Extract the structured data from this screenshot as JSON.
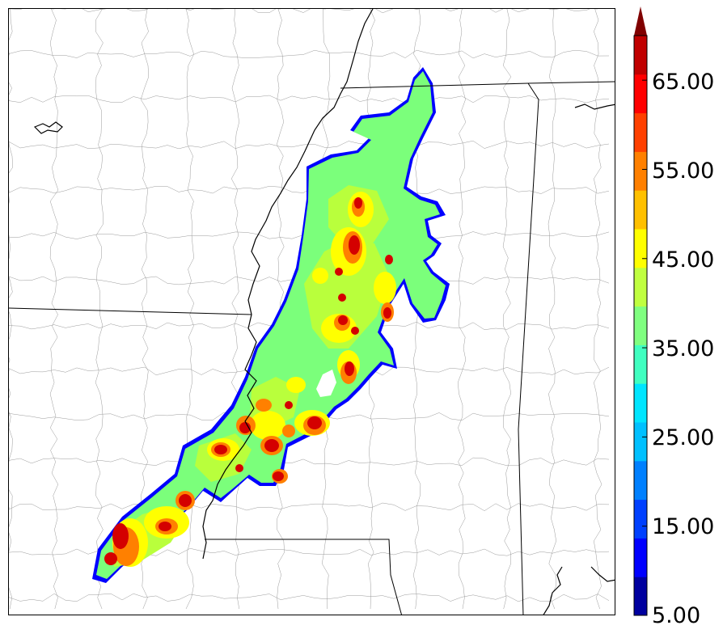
{
  "map": {
    "field_colors": [
      "#00ffff",
      "#7bff7b",
      "#b9ff3c",
      "#ffff00",
      "#ffaa00",
      "#ff6000",
      "#ff1a00",
      "#d40000",
      "#8b0000"
    ],
    "county_line_color": "#9a9a9a",
    "state_line_color": "#000000",
    "river_color": "#000000"
  },
  "colorbar": {
    "colors": [
      "#00009f",
      "#0000ff",
      "#0040ff",
      "#0080ff",
      "#00c0ff",
      "#00e5ff",
      "#40ffc0",
      "#80ff80",
      "#c0ff40",
      "#ffff00",
      "#ffc000",
      "#ff8000",
      "#ff4000",
      "#ff0000",
      "#c00000"
    ],
    "extend_color": "#800000",
    "min": 5,
    "max": 70,
    "labels": [
      "5.00",
      "15.00",
      "25.00",
      "35.00",
      "45.00",
      "55.00",
      "65.00"
    ]
  }
}
